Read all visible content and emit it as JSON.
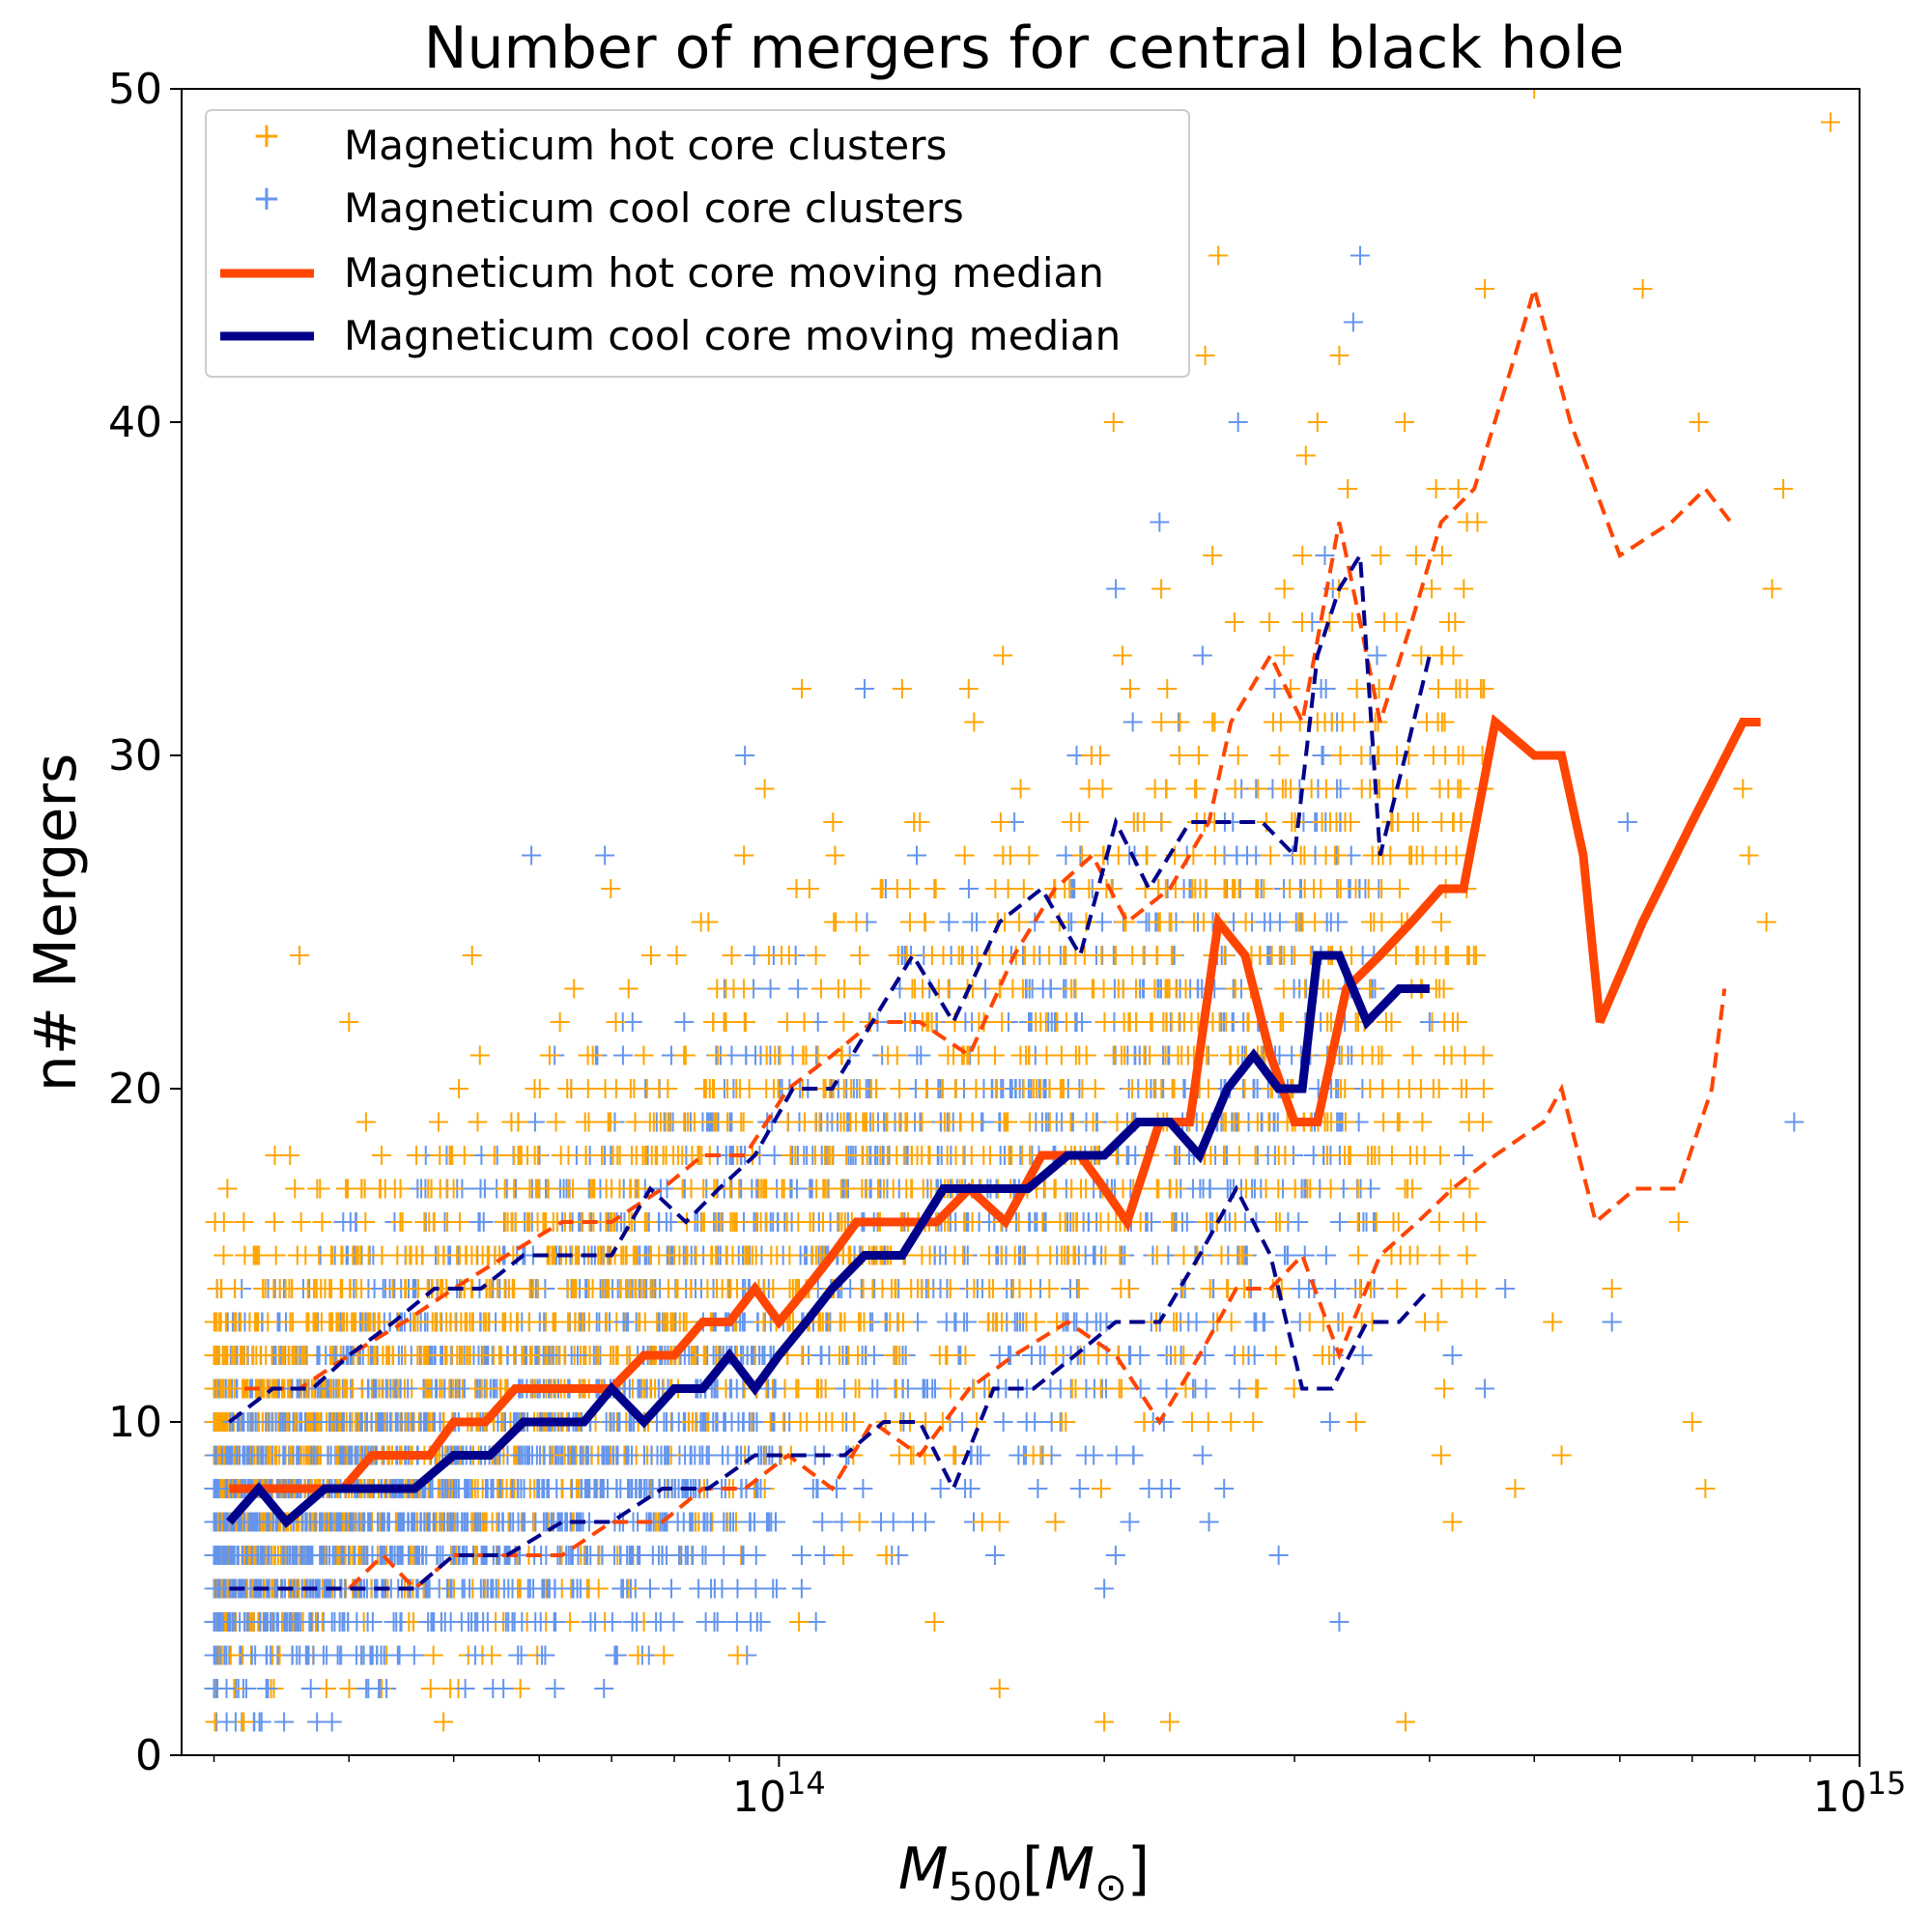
{
  "chart_data": {
    "type": "scatter",
    "title": "Number of mergers for central black hole",
    "xlabel": "M500[M⊙]",
    "xlabel_main": "M",
    "xlabel_sub": "500",
    "xlabel_bracket_open": "[",
    "xlabel_unit_main": "M",
    "xlabel_unit_sub": "⊙",
    "xlabel_bracket_close": "]",
    "ylabel": "n# Mergers",
    "xscale": "log",
    "xlim": [
      28000000000000,
      1000000000000000
    ],
    "ylim": [
      0,
      50
    ],
    "x_major_ticks": [
      {
        "value": 100000000000000,
        "base": "10",
        "exp": "14"
      },
      {
        "value": 1000000000000000,
        "base": "10",
        "exp": "15"
      }
    ],
    "y_ticks": [
      {
        "value": 0,
        "label": "0"
      },
      {
        "value": 10,
        "label": "10"
      },
      {
        "value": 20,
        "label": "20"
      },
      {
        "value": 30,
        "label": "30"
      },
      {
        "value": 40,
        "label": "40"
      },
      {
        "value": 50,
        "label": "50"
      }
    ],
    "legend": {
      "position": "upper-left",
      "entries": [
        {
          "label": "Magneticum hot core clusters",
          "kind": "marker",
          "color": "#FFA500"
        },
        {
          "label": "Magneticum cool core clusters",
          "kind": "marker",
          "color": "#6495ED"
        },
        {
          "label": "Magneticum hot core moving median",
          "kind": "line",
          "color": "#FF4500"
        },
        {
          "label": "Magneticum cool core moving median",
          "kind": "line",
          "color": "#00008B"
        }
      ]
    },
    "colors": {
      "hot_marker": "#FFA500",
      "cool_marker": "#6495ED",
      "hot_median": "#FF4500",
      "cool_median": "#00008B"
    },
    "scatter_note": "Dense cloud of '+' markers for ~thousands of clusters; outlier points listed below, bulk cloud described by envelope per mass.",
    "hot_outliers": [
      [
        36000000000000.0,
        24
      ],
      [
        40000000000000.0,
        22
      ],
      [
        52000000000000.0,
        24
      ],
      [
        97000000000000.0,
        29
      ],
      [
        105000000000000.0,
        32
      ],
      [
        130000000000000.0,
        32
      ],
      [
        204000000000000.0,
        40
      ],
      [
        248000000000000.0,
        42
      ],
      [
        255000000000000.0,
        45
      ],
      [
        315000000000000.0,
        40
      ],
      [
        330000000000000.0,
        42
      ],
      [
        336000000000000.0,
        38
      ],
      [
        450000000000000.0,
        44
      ],
      [
        500000000000000.0,
        50
      ],
      [
        630000000000000.0,
        44
      ],
      [
        710000000000000.0,
        40
      ],
      [
        850000000000000.0,
        38
      ],
      [
        940000000000000.0,
        49
      ],
      [
        830000000000000.0,
        35
      ],
      [
        780000000000000.0,
        29
      ],
      [
        790000000000000.0,
        27
      ],
      [
        820000000000000.0,
        25
      ],
      [
        680000000000000.0,
        16
      ],
      [
        520000000000000.0,
        13
      ],
      [
        530000000000000.0,
        9
      ],
      [
        590000000000000.0,
        14
      ],
      [
        700000000000000.0,
        10
      ],
      [
        720000000000000.0,
        8
      ],
      [
        420000000000000.0,
        7
      ],
      [
        380000000000000.0,
        1
      ],
      [
        230000000000000.0,
        1
      ],
      [
        200000000000000.0,
        1
      ],
      [
        160000000000000.0,
        2
      ],
      [
        160000000000000.0,
        7
      ],
      [
        480000000000000.0,
        8
      ],
      [
        410000000000000.0,
        9
      ]
    ],
    "cool_outliers": [
      [
        93000000000000.0,
        30
      ],
      [
        69000000000000.0,
        27
      ],
      [
        59000000000000.0,
        27
      ],
      [
        120000000000000.0,
        32
      ],
      [
        180000000000000.0,
        22
      ],
      [
        266000000000000.0,
        40
      ],
      [
        345000000000000.0,
        45
      ],
      [
        340000000000000.0,
        43
      ],
      [
        205000000000000.0,
        35
      ],
      [
        225000000000000.0,
        37
      ],
      [
        320000000000000.0,
        36
      ],
      [
        430000000000000.0,
        18
      ],
      [
        610000000000000.0,
        28
      ],
      [
        870000000000000.0,
        19
      ],
      [
        470000000000000.0,
        14
      ],
      [
        400000000000000.0,
        22
      ],
      [
        590000000000000.0,
        13
      ],
      [
        450000000000000.0,
        11
      ],
      [
        330000000000000.0,
        4
      ],
      [
        290000000000000.0,
        6
      ],
      [
        250000000000000.0,
        7
      ],
      [
        220000000000000.0,
        8
      ],
      [
        200000000000000.0,
        5
      ],
      [
        420000000000000.0,
        12
      ]
    ],
    "series": [
      {
        "name": "Magneticum hot core moving median",
        "style": "solid",
        "color": "#FF4500",
        "x": [
          31000000000000.0,
          34000000000000.0,
          37000000000000.0,
          39500000000000.0,
          42000000000000.0,
          45000000000000.0,
          47500000000000.0,
          50000000000000.0,
          53500000000000.0,
          57000000000000.0,
          60000000000000.0,
          65000000000000.0,
          70000000000000.0,
          75000000000000.0,
          80000000000000.0,
          85000000000000.0,
          90000000000000.0,
          95000000000000.0,
          100000000000000.0,
          106000000000000.0,
          112000000000000.0,
          118000000000000.0,
          125000000000000.0,
          132000000000000.0,
          140000000000000.0,
          150000000000000.0,
          162000000000000.0,
          175000000000000.0,
          190000000000000.0,
          200000000000000.0,
          210000000000000.0,
          225000000000000.0,
          240000000000000.0,
          255000000000000.0,
          270000000000000.0,
          285000000000000.0,
          300000000000000.0,
          315000000000000.0,
          335000000000000.0,
          360000000000000.0,
          385000000000000.0,
          410000000000000.0,
          430000000000000.0,
          460000000000000.0,
          500000000000000.0,
          530000000000000.0,
          555000000000000.0,
          575000000000000.0,
          630000000000000.0,
          700000000000000.0,
          780000000000000.0,
          810000000000000.0
        ],
        "y": [
          8,
          8,
          8,
          8,
          9,
          9,
          9,
          10,
          10,
          11,
          11,
          11,
          11,
          12,
          12,
          13,
          13,
          14,
          13,
          14,
          15,
          16,
          16,
          16,
          16,
          17,
          16,
          18,
          18,
          17,
          16,
          19,
          19,
          25,
          24,
          21,
          19,
          19,
          23,
          24,
          25,
          26,
          26,
          31,
          30,
          30,
          27,
          22,
          25,
          28,
          31,
          31
        ]
      },
      {
        "name": "Magneticum cool core moving median",
        "style": "solid",
        "color": "#00008B",
        "x": [
          31000000000000.0,
          33000000000000.0,
          35000000000000.0,
          38000000000000.0,
          40000000000000.0,
          43000000000000.0,
          46000000000000.0,
          50000000000000.0,
          54000000000000.0,
          58000000000000.0,
          62000000000000.0,
          66000000000000.0,
          70000000000000.0,
          75000000000000.0,
          80000000000000.0,
          85000000000000.0,
          90000000000000.0,
          95000000000000.0,
          100000000000000.0,
          106000000000000.0,
          112000000000000.0,
          120000000000000.0,
          130000000000000.0,
          142000000000000.0,
          155000000000000.0,
          170000000000000.0,
          185000000000000.0,
          200000000000000.0,
          215000000000000.0,
          230000000000000.0,
          245000000000000.0,
          260000000000000.0,
          275000000000000.0,
          290000000000000.0,
          305000000000000.0,
          315000000000000.0,
          330000000000000.0,
          350000000000000.0,
          375000000000000.0,
          400000000000000.0
        ],
        "y": [
          7,
          8,
          7,
          8,
          8,
          8,
          8,
          9,
          9,
          10,
          10,
          10,
          11,
          10,
          11,
          11,
          12,
          11,
          12,
          13,
          14,
          15,
          15,
          17,
          17,
          17,
          18,
          18,
          19,
          19,
          18,
          20,
          21,
          20,
          20,
          24,
          24,
          22,
          23,
          23
        ]
      },
      {
        "name": "hot core upper bound",
        "style": "dashed",
        "color": "#FF4500",
        "x": [
          32000000000000.0,
          36000000000000.0,
          40000000000000.0,
          45000000000000.0,
          50000000000000.0,
          56000000000000.0,
          63000000000000.0,
          70000000000000.0,
          78000000000000.0,
          85000000000000.0,
          93000000000000.0,
          102000000000000.0,
          112000000000000.0,
          122000000000000.0,
          135000000000000.0,
          150000000000000.0,
          165000000000000.0,
          180000000000000.0,
          195000000000000.0,
          210000000000000.0,
          230000000000000.0,
          250000000000000.0,
          262000000000000.0,
          285000000000000.0,
          305000000000000.0,
          330000000000000.0,
          345000000000000.0,
          360000000000000.0,
          385000000000000.0,
          410000000000000.0,
          440000000000000.0,
          480000000000000.0,
          500000000000000.0,
          540000000000000.0,
          600000000000000.0,
          670000000000000.0,
          720000000000000.0,
          760000000000000.0
        ],
        "y": [
          11,
          11,
          12,
          13,
          14,
          15,
          16,
          16,
          17,
          18,
          18,
          20,
          21,
          22,
          22,
          21,
          24,
          26,
          27,
          25,
          26,
          28,
          31,
          33,
          31,
          37,
          34,
          31,
          34,
          37,
          38,
          42,
          44,
          40,
          36,
          37,
          38,
          37
        ]
      },
      {
        "name": "hot core lower bound",
        "style": "dashed",
        "color": "#FF4500",
        "x": [
          40000000000000.0,
          43000000000000.0,
          46000000000000.0,
          50000000000000.0,
          56000000000000.0,
          63000000000000.0,
          70000000000000.0,
          78000000000000.0,
          85000000000000.0,
          93000000000000.0,
          102000000000000.0,
          112000000000000.0,
          122000000000000.0,
          135000000000000.0,
          150000000000000.0,
          165000000000000.0,
          185000000000000.0,
          205000000000000.0,
          225000000000000.0,
          245000000000000.0,
          265000000000000.0,
          285000000000000.0,
          305000000000000.0,
          330000000000000.0,
          360000000000000.0,
          390000000000000.0,
          420000000000000.0,
          460000000000000.0,
          510000000000000.0,
          530000000000000.0,
          570000000000000.0,
          620000000000000.0,
          680000000000000.0,
          730000000000000.0,
          750000000000000.0
        ],
        "y": [
          5,
          6,
          5,
          6,
          6,
          6,
          7,
          7,
          8,
          8,
          9,
          8,
          10,
          9,
          11,
          12,
          13,
          12,
          10,
          12,
          14,
          14,
          15,
          12,
          15,
          16,
          17,
          18,
          19,
          20,
          16,
          17,
          17,
          20,
          23
        ]
      },
      {
        "name": "cool core upper bound",
        "style": "dashed",
        "color": "#00008B",
        "x": [
          31000000000000.0,
          34000000000000.0,
          37000000000000.0,
          40000000000000.0,
          44000000000000.0,
          48000000000000.0,
          53000000000000.0,
          58000000000000.0,
          64000000000000.0,
          70000000000000.0,
          76000000000000.0,
          82000000000000.0,
          88000000000000.0,
          95000000000000.0,
          103000000000000.0,
          112000000000000.0,
          122000000000000.0,
          133000000000000.0,
          145000000000000.0,
          160000000000000.0,
          175000000000000.0,
          190000000000000.0,
          205000000000000.0,
          220000000000000.0,
          240000000000000.0,
          260000000000000.0,
          280000000000000.0,
          300000000000000.0,
          315000000000000.0,
          330000000000000.0,
          345000000000000.0,
          360000000000000.0,
          380000000000000.0,
          400000000000000.0
        ],
        "y": [
          10,
          11,
          11,
          12,
          13,
          14,
          14,
          15,
          15,
          15,
          17,
          16,
          17,
          18,
          20,
          20,
          22,
          24,
          22,
          25,
          26,
          24,
          28,
          26,
          28,
          28,
          28,
          27,
          33,
          35,
          36,
          27,
          30,
          33
        ]
      },
      {
        "name": "cool core lower bound",
        "style": "dashed",
        "color": "#00008B",
        "x": [
          31000000000000.0,
          34000000000000.0,
          38000000000000.0,
          42000000000000.0,
          46000000000000.0,
          50000000000000.0,
          56000000000000.0,
          63000000000000.0,
          70000000000000.0,
          78000000000000.0,
          86000000000000.0,
          95000000000000.0,
          105000000000000.0,
          115000000000000.0,
          125000000000000.0,
          135000000000000.0,
          145000000000000.0,
          158000000000000.0,
          172000000000000.0,
          188000000000000.0,
          205000000000000.0,
          225000000000000.0,
          245000000000000.0,
          265000000000000.0,
          285000000000000.0,
          305000000000000.0,
          325000000000000.0,
          350000000000000.0,
          375000000000000.0,
          400000000000000.0
        ],
        "y": [
          5,
          5,
          5,
          5,
          5,
          6,
          6,
          7,
          7,
          8,
          8,
          9,
          9,
          9,
          10,
          10,
          8,
          11,
          11,
          12,
          13,
          13,
          15,
          17,
          15,
          11,
          11,
          13,
          13,
          14
        ]
      }
    ]
  }
}
